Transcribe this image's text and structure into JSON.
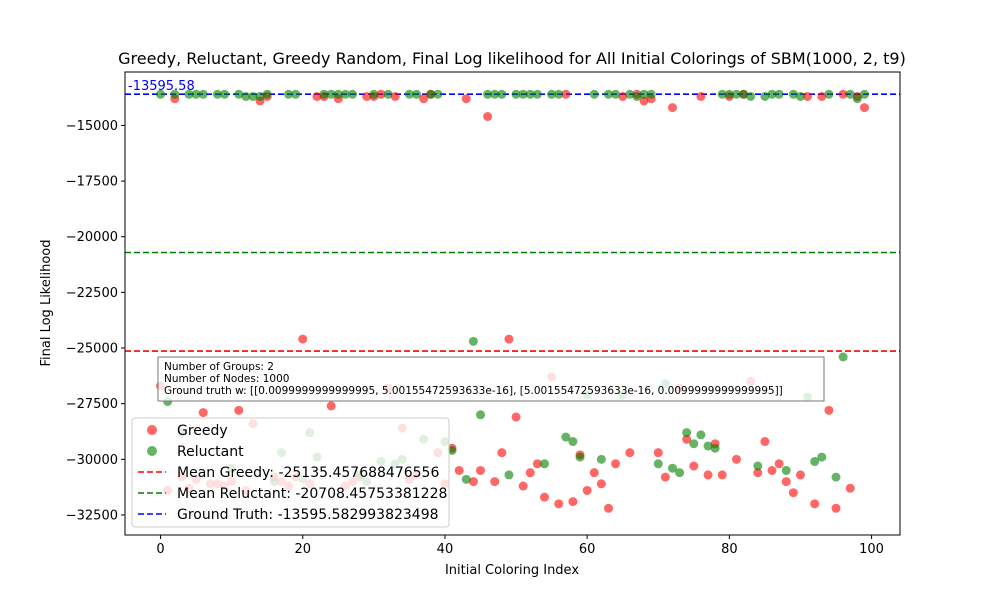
{
  "chart_data": {
    "type": "scatter",
    "title": "Greedy, Reluctant, Greedy Random, Final Log likelihood for All Initial Colorings of SBM(1000, 2, t9)",
    "xlabel": "Initial Coloring Index",
    "ylabel": "Final Log Likelihood",
    "xlim": [
      -5,
      104
    ],
    "ylim": [
      -33400,
      -12600
    ],
    "x_ticks": [
      0,
      20,
      40,
      60,
      80,
      100
    ],
    "y_ticks": [
      -32500,
      -30000,
      -27500,
      -25000,
      -22500,
      -20000,
      -17500,
      -15000
    ],
    "grid": false,
    "legend_position": "lower-left",
    "series": [
      {
        "name": "Greedy",
        "color": "#ff0000",
        "points": [
          [
            0,
            -26700
          ],
          [
            1,
            -31400
          ],
          [
            2,
            -13800
          ],
          [
            3,
            -30800
          ],
          [
            4,
            -31300
          ],
          [
            5,
            -30900
          ],
          [
            6,
            -27900
          ],
          [
            7,
            -31100
          ],
          [
            8,
            -31100
          ],
          [
            9,
            -31200
          ],
          [
            10,
            -31000
          ],
          [
            11,
            -27800
          ],
          [
            12,
            -31400
          ],
          [
            13,
            -28400
          ],
          [
            14,
            -13900
          ],
          [
            15,
            -13700
          ],
          [
            16,
            -30800
          ],
          [
            17,
            -31000
          ],
          [
            18,
            -31200
          ],
          [
            19,
            -30800
          ],
          [
            20,
            -24600
          ],
          [
            21,
            -31100
          ],
          [
            22,
            -13700
          ],
          [
            23,
            -13700
          ],
          [
            24,
            -27600
          ],
          [
            25,
            -13800
          ],
          [
            26,
            -31200
          ],
          [
            27,
            -31000
          ],
          [
            28,
            -30800
          ],
          [
            29,
            -13700
          ],
          [
            30,
            -13700
          ],
          [
            31,
            -13600
          ],
          [
            32,
            -26800
          ],
          [
            33,
            -13700
          ],
          [
            34,
            -28600
          ],
          [
            35,
            -30900
          ],
          [
            36,
            -30700
          ],
          [
            37,
            -13800
          ],
          [
            38,
            -13600
          ],
          [
            39,
            -29700
          ],
          [
            40,
            -31100
          ],
          [
            41,
            -29500
          ],
          [
            42,
            -30500
          ],
          [
            43,
            -13800
          ],
          [
            44,
            -31000
          ],
          [
            45,
            -30500
          ],
          [
            46,
            -14600
          ],
          [
            47,
            -31000
          ],
          [
            48,
            -29700
          ],
          [
            49,
            -24600
          ],
          [
            50,
            -28100
          ],
          [
            51,
            -31200
          ],
          [
            52,
            -30600
          ],
          [
            53,
            -30200
          ],
          [
            54,
            -31700
          ],
          [
            55,
            -26300
          ],
          [
            56,
            -32000
          ],
          [
            57,
            -13600
          ],
          [
            58,
            -31900
          ],
          [
            59,
            -29800
          ],
          [
            60,
            -31400
          ],
          [
            61,
            -30600
          ],
          [
            62,
            -31100
          ],
          [
            63,
            -32200
          ],
          [
            64,
            -30200
          ],
          [
            65,
            -13700
          ],
          [
            66,
            -29700
          ],
          [
            67,
            -13600
          ],
          [
            68,
            -13900
          ],
          [
            69,
            -13800
          ],
          [
            70,
            -29700
          ],
          [
            71,
            -30800
          ],
          [
            72,
            -14200
          ],
          [
            73,
            -26800
          ],
          [
            74,
            -29100
          ],
          [
            75,
            -30300
          ],
          [
            76,
            -13700
          ],
          [
            77,
            -30700
          ],
          [
            78,
            -29300
          ],
          [
            79,
            -30700
          ],
          [
            80,
            -13700
          ],
          [
            81,
            -30000
          ],
          [
            82,
            -13600
          ],
          [
            83,
            -26500
          ],
          [
            84,
            -30600
          ],
          [
            85,
            -29200
          ],
          [
            86,
            -30500
          ],
          [
            87,
            -30200
          ],
          [
            88,
            -31000
          ],
          [
            89,
            -31500
          ],
          [
            90,
            -30700
          ],
          [
            91,
            -13700
          ],
          [
            92,
            -32000
          ],
          [
            93,
            -13700
          ],
          [
            94,
            -27800
          ],
          [
            95,
            -32200
          ],
          [
            96,
            -13600
          ],
          [
            97,
            -31300
          ],
          [
            98,
            -13700
          ],
          [
            99,
            -14200
          ]
        ]
      },
      {
        "name": "Reluctant",
        "color": "#008000",
        "points": [
          [
            0,
            -13600
          ],
          [
            1,
            -27400
          ],
          [
            2,
            -13600
          ],
          [
            3,
            -28800
          ],
          [
            4,
            -13600
          ],
          [
            5,
            -13600
          ],
          [
            6,
            -13600
          ],
          [
            8,
            -13600
          ],
          [
            9,
            -13600
          ],
          [
            10,
            -30400
          ],
          [
            11,
            -13600
          ],
          [
            12,
            -13700
          ],
          [
            13,
            -13700
          ],
          [
            14,
            -13700
          ],
          [
            15,
            -13600
          ],
          [
            16,
            -31000
          ],
          [
            17,
            -29700
          ],
          [
            18,
            -13600
          ],
          [
            19,
            -13600
          ],
          [
            20,
            -30900
          ],
          [
            21,
            -28800
          ],
          [
            22,
            -29900
          ],
          [
            23,
            -13600
          ],
          [
            24,
            -13600
          ],
          [
            25,
            -13600
          ],
          [
            26,
            -13600
          ],
          [
            27,
            -13600
          ],
          [
            28,
            -30700
          ],
          [
            29,
            -31000
          ],
          [
            30,
            -13600
          ],
          [
            31,
            -30100
          ],
          [
            32,
            -13600
          ],
          [
            33,
            -30200
          ],
          [
            34,
            -30000
          ],
          [
            35,
            -13600
          ],
          [
            36,
            -13600
          ],
          [
            37,
            -29100
          ],
          [
            38,
            -13600
          ],
          [
            39,
            -13600
          ],
          [
            40,
            -29200
          ],
          [
            41,
            -29600
          ],
          [
            43,
            -30900
          ],
          [
            44,
            -24700
          ],
          [
            45,
            -28000
          ],
          [
            46,
            -13600
          ],
          [
            47,
            -13600
          ],
          [
            48,
            -13600
          ],
          [
            49,
            -30700
          ],
          [
            50,
            -13600
          ],
          [
            51,
            -13600
          ],
          [
            52,
            -13600
          ],
          [
            53,
            -13600
          ],
          [
            54,
            -30200
          ],
          [
            55,
            -13600
          ],
          [
            56,
            -13600
          ],
          [
            57,
            -29000
          ],
          [
            58,
            -29200
          ],
          [
            59,
            -29900
          ],
          [
            60,
            -27100
          ],
          [
            61,
            -13600
          ],
          [
            62,
            -30000
          ],
          [
            63,
            -13600
          ],
          [
            64,
            -13600
          ],
          [
            65,
            -27100
          ],
          [
            66,
            -13600
          ],
          [
            67,
            -13700
          ],
          [
            68,
            -13600
          ],
          [
            69,
            -13600
          ],
          [
            70,
            -30200
          ],
          [
            71,
            -26600
          ],
          [
            72,
            -30400
          ],
          [
            73,
            -30600
          ],
          [
            74,
            -28800
          ],
          [
            75,
            -29300
          ],
          [
            76,
            -28900
          ],
          [
            77,
            -29400
          ],
          [
            78,
            -29500
          ],
          [
            79,
            -13600
          ],
          [
            80,
            -13600
          ],
          [
            81,
            -13600
          ],
          [
            82,
            -13600
          ],
          [
            83,
            -13700
          ],
          [
            84,
            -30300
          ],
          [
            85,
            -13700
          ],
          [
            86,
            -13600
          ],
          [
            87,
            -13600
          ],
          [
            88,
            -30500
          ],
          [
            89,
            -13600
          ],
          [
            90,
            -13700
          ],
          [
            91,
            -27200
          ],
          [
            92,
            -30100
          ],
          [
            93,
            -29900
          ],
          [
            94,
            -13600
          ],
          [
            95,
            -30800
          ],
          [
            96,
            -25400
          ],
          [
            97,
            -13600
          ],
          [
            98,
            -13800
          ],
          [
            99,
            -13600
          ]
        ]
      }
    ],
    "reference_lines": [
      {
        "name": "Mean Greedy: -25135.457688476556",
        "y": -25135.457688476556,
        "color": "#ff0000",
        "style": "dashed"
      },
      {
        "name": "Mean Reluctant: -20708.45753381228",
        "y": -20708.45753381228,
        "color": "#008000",
        "style": "dashed"
      },
      {
        "name": "Ground Truth: -13595.582993823498",
        "y": -13595.582993823498,
        "color": "#0000ff",
        "style": "dashed"
      }
    ],
    "annotations": [
      {
        "text": "-13595.58",
        "color": "#0000ff"
      }
    ],
    "info_box": [
      "Number of Groups: 2",
      "Number of Nodes: 1000",
      "Ground truth w: [[0.0099999999999995, 5.00155472593633e-16], [5.00155472593633e-16, 0.0099999999999995]]"
    ]
  }
}
